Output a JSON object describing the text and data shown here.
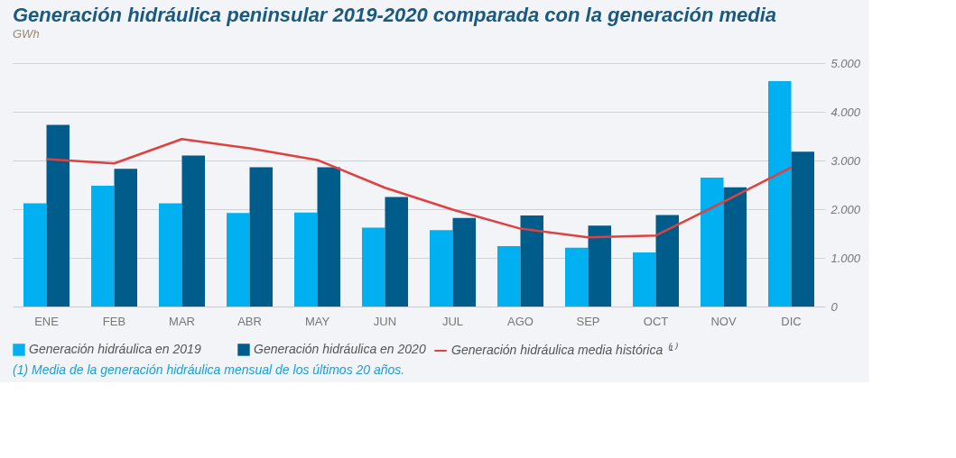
{
  "chart_data": {
    "type": "bar",
    "title": "Generación hidráulica peninsular 2019-2020 comparada con la generación media",
    "ylabel": "GWh",
    "categories": [
      "ENE",
      "FEB",
      "MAR",
      "ABR",
      "MAY",
      "JUN",
      "JUL",
      "AGO",
      "SEP",
      "OCT",
      "NOV",
      "DIC"
    ],
    "series": [
      {
        "name": "Generación hidráulica en 2019",
        "type": "bar",
        "color": "#00b0f0",
        "values": [
          2120,
          2480,
          2120,
          1920,
          1930,
          1620,
          1570,
          1240,
          1210,
          1110,
          2650,
          4630
        ]
      },
      {
        "name": "Generación hidráulica en 2020",
        "type": "bar",
        "color": "#005c8a",
        "values": [
          3730,
          2830,
          3100,
          2860,
          2860,
          2250,
          1820,
          1870,
          1660,
          1880,
          2450,
          3180
        ]
      },
      {
        "name": "Generación hidráulica media histórica ⁽¹⁾",
        "type": "line",
        "color": "#e0403f",
        "values": [
          3030,
          2940,
          3440,
          3250,
          3010,
          2440,
          1990,
          1600,
          1420,
          1460,
          2150,
          2860
        ]
      }
    ],
    "ylim": [
      0,
      5000
    ],
    "yticks": [
      0,
      {
        "value": 1000,
        "label": "1.000"
      },
      {
        "value": 2000,
        "label": "2.000"
      },
      {
        "value": 3000,
        "label": "3.000"
      },
      {
        "value": 4000,
        "label": "4.000"
      },
      {
        "value": 5000,
        "label": "5.000"
      }
    ],
    "grid": "y",
    "legend": "bottom",
    "marker": "none",
    "line_style": "solid",
    "annotations": [
      "(1) Media de la generación hidráulica mensual de los últimos 20 años."
    ]
  }
}
